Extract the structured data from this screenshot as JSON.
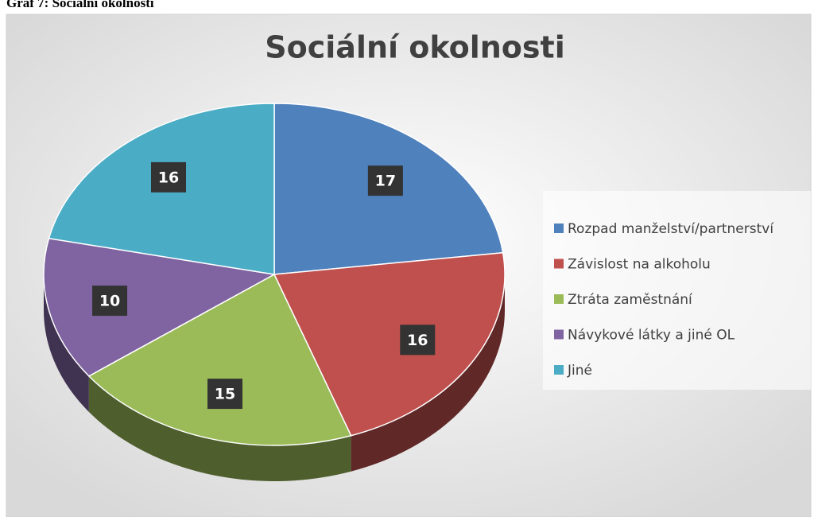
{
  "caption": "Graf 7: Sociální okolnosti",
  "chart_data": {
    "type": "pie",
    "title": "Sociální okolnosti",
    "categories": [
      "Rozpad manželství/partnerství",
      "Závislost na alkoholu",
      "Ztráta zaměstnání",
      "Návykové látky a jiné OL",
      "Jiné"
    ],
    "values": [
      17,
      16,
      15,
      10,
      16
    ],
    "colors": [
      "#4f81bd",
      "#c0504d",
      "#9bbb59",
      "#8064a2",
      "#4bacc6"
    ],
    "legend": "right"
  }
}
